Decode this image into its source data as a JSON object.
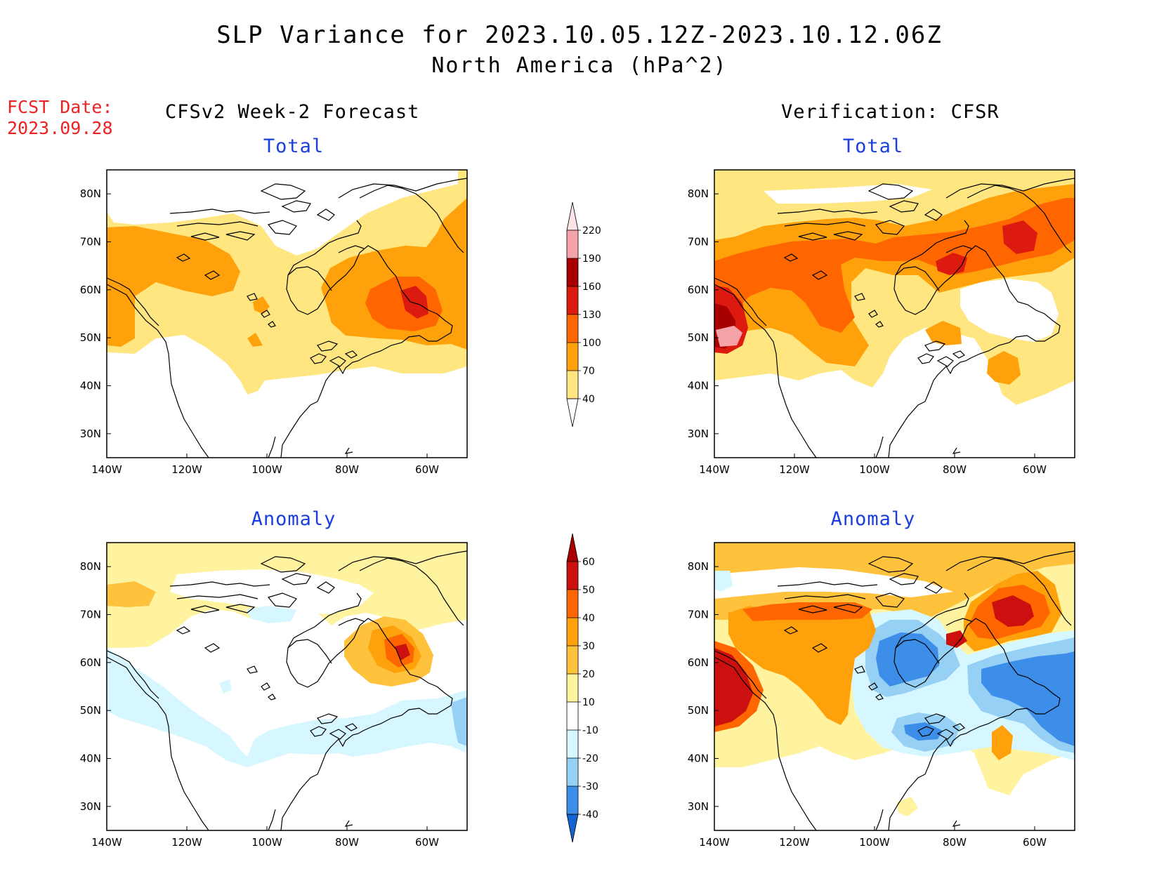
{
  "header": {
    "title": "SLP Variance for 2023.10.05.12Z-2023.10.12.06Z",
    "subtitle": "North America (hPa^2)",
    "fcst_date_label": "FCST Date:",
    "fcst_date_value": "2023.09.28"
  },
  "columns": {
    "left": "CFSv2 Week-2 Forecast",
    "right": "Verification: CFSR"
  },
  "panels": [
    {
      "id": "forecast-total",
      "title": "Total",
      "colorbar": "total"
    },
    {
      "id": "verification-total",
      "title": "Total",
      "colorbar": "total"
    },
    {
      "id": "forecast-anomaly",
      "title": "Anomaly",
      "colorbar": "anomaly"
    },
    {
      "id": "verification-anomaly",
      "title": "Anomaly",
      "colorbar": "anomaly"
    }
  ],
  "axes": {
    "lon_ticks": [
      "140W",
      "120W",
      "100W",
      "80W",
      "60W"
    ],
    "lat_ticks": [
      "80N",
      "70N",
      "60N",
      "50N",
      "40N",
      "30N"
    ],
    "lon_range": [
      -140,
      -50
    ],
    "lat_range": [
      25,
      85
    ]
  },
  "colorbars": {
    "total": {
      "levels": [
        "220",
        "190",
        "160",
        "130",
        "100",
        "70",
        "40"
      ],
      "colors": [
        "#f5a3a8",
        "#a80000",
        "#dd1a10",
        "#ff6600",
        "#ffa10a",
        "#ffe680"
      ],
      "top_color": "#fde3e6"
    },
    "anomaly": {
      "levels": [
        "60",
        "50",
        "40",
        "30",
        "20",
        "10",
        "-10",
        "-20",
        "-30",
        "-40"
      ],
      "colors": [
        "#cc1010",
        "#ff6600",
        "#ffa10a",
        "#ffc23d",
        "#fff3a0",
        "#ffffff",
        "#d6f7ff",
        "#96d0f5",
        "#3d8ee8"
      ],
      "top_color": "#a80000",
      "bottom_color": "#1463d2"
    }
  },
  "colors": {
    "fcst_text": "#ee2222",
    "panel_title": "#1a3fdc",
    "coast": "#000000"
  }
}
